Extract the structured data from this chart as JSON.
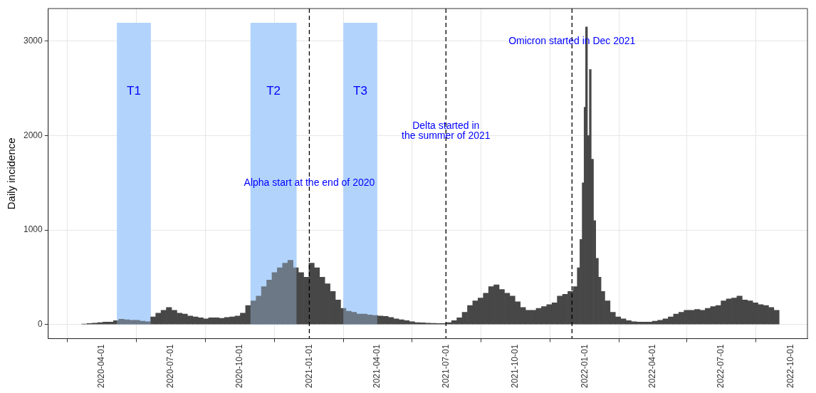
{
  "chart_data": {
    "type": "bar",
    "ylabel": "Daily incidence",
    "x": [
      "2020-03-09",
      "2020-03-16",
      "2020-03-23",
      "2020-03-30",
      "2020-04-06",
      "2020-04-13",
      "2020-04-20",
      "2020-04-27",
      "2020-05-04",
      "2020-05-11",
      "2020-05-18",
      "2020-05-25",
      "2020-06-01",
      "2020-06-08",
      "2020-06-15",
      "2020-06-22",
      "2020-06-29",
      "2020-07-06",
      "2020-07-13",
      "2020-07-20",
      "2020-07-27",
      "2020-08-03",
      "2020-08-10",
      "2020-08-17",
      "2020-08-24",
      "2020-08-31",
      "2020-09-07",
      "2020-09-14",
      "2020-09-21",
      "2020-09-28",
      "2020-10-05",
      "2020-10-12",
      "2020-10-19",
      "2020-10-26",
      "2020-11-02",
      "2020-11-09",
      "2020-11-16",
      "2020-11-23",
      "2020-11-30",
      "2020-12-07",
      "2020-12-14",
      "2020-12-21",
      "2020-12-28",
      "2021-01-04",
      "2021-01-11",
      "2021-01-18",
      "2021-01-25",
      "2021-02-01",
      "2021-02-08",
      "2021-02-15",
      "2021-02-22",
      "2021-03-01",
      "2021-03-08",
      "2021-03-15",
      "2021-03-22",
      "2021-03-29",
      "2021-04-05",
      "2021-04-12",
      "2021-04-19",
      "2021-04-26",
      "2021-05-03",
      "2021-05-10",
      "2021-05-17",
      "2021-05-24",
      "2021-05-31",
      "2021-06-07",
      "2021-06-14",
      "2021-06-21",
      "2021-06-28",
      "2021-07-05",
      "2021-07-12",
      "2021-07-19",
      "2021-07-26",
      "2021-08-02",
      "2021-08-09",
      "2021-08-16",
      "2021-08-23",
      "2021-08-30",
      "2021-09-06",
      "2021-09-13",
      "2021-09-20",
      "2021-09-27",
      "2021-10-04",
      "2021-10-11",
      "2021-10-18",
      "2021-10-25",
      "2021-11-01",
      "2021-11-08",
      "2021-11-15",
      "2021-11-22",
      "2021-11-29",
      "2021-12-06",
      "2021-12-13",
      "2021-12-20",
      "2021-12-24",
      "2021-12-27",
      "2021-12-30",
      "2022-01-01",
      "2022-01-03",
      "2022-01-06",
      "2022-01-08",
      "2022-01-11",
      "2022-01-14",
      "2022-01-17",
      "2022-01-21",
      "2022-01-24",
      "2022-01-31",
      "2022-02-07",
      "2022-02-14",
      "2022-02-21",
      "2022-02-28",
      "2022-03-07",
      "2022-03-14",
      "2022-03-21",
      "2022-03-28",
      "2022-04-04",
      "2022-04-11",
      "2022-04-18",
      "2022-04-25",
      "2022-05-02",
      "2022-05-09",
      "2022-05-16",
      "2022-05-23",
      "2022-05-30",
      "2022-06-06",
      "2022-06-13",
      "2022-06-20",
      "2022-06-27",
      "2022-07-04",
      "2022-07-11",
      "2022-07-18",
      "2022-07-25",
      "2022-08-01",
      "2022-08-08",
      "2022-08-15",
      "2022-08-22",
      "2022-08-29",
      "2022-09-05",
      "2022-09-12"
    ],
    "values": [
      5,
      10,
      15,
      20,
      25,
      25,
      40,
      55,
      50,
      45,
      45,
      35,
      30,
      80,
      120,
      150,
      180,
      150,
      120,
      110,
      90,
      80,
      70,
      60,
      70,
      70,
      65,
      75,
      80,
      90,
      120,
      200,
      250,
      300,
      400,
      470,
      550,
      600,
      650,
      680,
      600,
      550,
      500,
      650,
      600,
      500,
      430,
      350,
      260,
      170,
      140,
      130,
      110,
      110,
      100,
      95,
      90,
      85,
      75,
      60,
      50,
      40,
      30,
      20,
      18,
      15,
      12,
      10,
      10,
      20,
      40,
      70,
      130,
      200,
      250,
      280,
      330,
      400,
      420,
      370,
      330,
      300,
      240,
      180,
      150,
      150,
      170,
      190,
      210,
      230,
      300,
      320,
      350,
      400,
      600,
      900,
      1500,
      2300,
      3150,
      2000,
      2700,
      1750,
      1100,
      700,
      500,
      350,
      250,
      130,
      80,
      60,
      40,
      30,
      25,
      25,
      25,
      35,
      45,
      60,
      80,
      110,
      130,
      150,
      150,
      160,
      150,
      170,
      190,
      200,
      250,
      270,
      280,
      300,
      260,
      250,
      230,
      210,
      200,
      180,
      150
    ],
    "color": "#474747",
    "xlim": [
      "2020-01-21",
      "2022-10-23"
    ],
    "xticks": [
      "2020-04-01",
      "2020-07-01",
      "2020-10-01",
      "2021-01-01",
      "2021-04-01",
      "2021-07-01",
      "2021-10-01",
      "2022-01-01",
      "2022-04-01",
      "2022-07-01",
      "2022-10-01"
    ],
    "ylim": [
      -150,
      3345
    ],
    "yticks": [
      0,
      1000,
      2000,
      3000
    ],
    "grid": true,
    "bands": [
      {
        "axis": "x",
        "from": "2020-04-21",
        "to": "2020-06-05",
        "label": "T1",
        "color": "#b3d4fc"
      },
      {
        "axis": "x",
        "from": "2020-10-15",
        "to": "2020-12-15",
        "label": "T2",
        "color": "#b3d4fc"
      },
      {
        "axis": "x",
        "from": "2021-02-15",
        "to": "2021-04-01",
        "label": "T3",
        "color": "#b3d4fc"
      }
    ],
    "ref_lines": [
      {
        "axis": "x",
        "value": "2021-01-01",
        "color": "#000000",
        "line_style": "dashed"
      },
      {
        "axis": "x",
        "value": "2021-07-01",
        "color": "#000000",
        "line_style": "dashed"
      },
      {
        "axis": "x",
        "value": "2021-12-15",
        "color": "#000000",
        "line_style": "dashed"
      }
    ],
    "annotations": [
      {
        "text": "Alpha start at the end of 2020",
        "x": "2021-01-01",
        "y": 1500
      },
      {
        "text": "Delta started in\nthe summer of 2021",
        "x": "2021-07-01",
        "y": 2050
      },
      {
        "text": "Omicron started in Dec 2021",
        "x": "2021-12-15",
        "y": 3000
      }
    ],
    "legend": false
  }
}
